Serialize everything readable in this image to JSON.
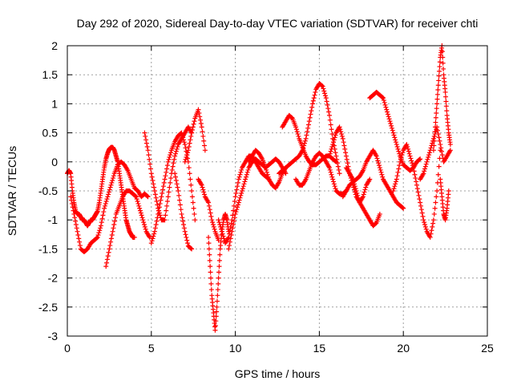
{
  "chart_data": {
    "type": "scatter",
    "title": "Day 292 of 2020, Sidereal Day-to-day VTEC variation (SDTVAR) for receiver chti",
    "xlabel": "GPS time / hours",
    "ylabel": "SDTVAR / TECUs",
    "xlim": [
      0,
      25
    ],
    "ylim": [
      -3,
      2
    ],
    "grid": true,
    "marker": "+",
    "x_ticks": [
      0,
      5,
      10,
      15,
      20,
      25
    ],
    "x_tick_labels": [
      "0",
      "5",
      "10",
      "15",
      "20",
      "25"
    ],
    "y_ticks": [
      -3,
      -2.5,
      -2,
      -1.5,
      -1,
      -0.5,
      0,
      0.5,
      1,
      1.5,
      2
    ],
    "y_tick_labels": [
      "-3",
      "-2.5",
      "-2",
      "-1.5",
      "-1",
      "-0.5",
      "0",
      "0.5",
      "1",
      "1.5",
      "2"
    ],
    "color": "#ff0000",
    "series": [
      {
        "name": "satellite-track-1",
        "x": [
          0.0,
          0.1,
          0.2,
          0.3,
          0.4,
          0.5,
          0.6,
          0.7,
          0.8,
          0.9,
          1.0,
          1.1,
          1.2,
          1.3,
          1.4,
          1.5,
          1.6,
          1.7,
          1.8,
          1.9,
          2.0,
          2.1,
          2.2,
          2.3,
          2.4,
          2.5,
          2.6,
          2.7,
          2.8,
          2.9,
          3.0,
          3.1,
          3.2,
          3.3,
          3.4,
          3.5,
          3.6,
          3.7,
          3.8,
          3.9,
          4.0
        ],
        "y": [
          -0.2,
          -0.15,
          -0.2,
          -0.5,
          -0.7,
          -0.85,
          -0.9,
          -0.9,
          -0.95,
          -1.0,
          -1.0,
          -1.05,
          -1.1,
          -1.05,
          -1.0,
          -1.0,
          -0.95,
          -0.9,
          -0.85,
          -0.7,
          -0.5,
          -0.3,
          -0.1,
          0.05,
          0.15,
          0.22,
          0.25,
          0.25,
          0.2,
          0.1,
          0.0,
          -0.2,
          -0.4,
          -0.6,
          -0.8,
          -1.0,
          -1.1,
          -1.2,
          -1.25,
          -1.3,
          -1.3
        ]
      },
      {
        "name": "satellite-track-2",
        "x": [
          0.2,
          0.4,
          0.6,
          0.8,
          1.0,
          1.2,
          1.4,
          1.6,
          1.8,
          2.0,
          2.2,
          2.4,
          2.6,
          2.8,
          3.0,
          3.2,
          3.4,
          3.6,
          3.8,
          4.0,
          4.2,
          4.4,
          4.6,
          4.8
        ],
        "y": [
          -0.6,
          -0.9,
          -1.2,
          -1.5,
          -1.55,
          -1.5,
          -1.4,
          -1.35,
          -1.3,
          -1.1,
          -0.8,
          -0.6,
          -0.4,
          -0.2,
          -0.05,
          0.0,
          -0.05,
          -0.15,
          -0.3,
          -0.45,
          -0.5,
          -0.6,
          -0.55,
          -0.6
        ]
      },
      {
        "name": "satellite-track-3",
        "x": [
          2.3,
          2.5,
          2.7,
          2.9,
          3.1,
          3.3,
          3.5,
          3.7,
          3.9,
          4.1,
          4.3,
          4.5,
          4.7,
          4.9
        ],
        "y": [
          -1.8,
          -1.5,
          -1.2,
          -0.9,
          -0.75,
          -0.6,
          -0.5,
          -0.5,
          -0.55,
          -0.6,
          -0.8,
          -1.0,
          -1.2,
          -1.3
        ]
      },
      {
        "name": "satellite-track-4",
        "x": [
          4.6,
          4.8,
          5.0,
          5.2,
          5.4,
          5.6,
          5.8,
          6.0,
          6.2,
          6.4,
          6.6,
          6.8,
          7.0,
          7.2,
          7.4
        ],
        "y": [
          0.5,
          0.2,
          -0.2,
          -0.5,
          -0.8,
          -1.0,
          -1.0,
          -0.6,
          -0.2,
          0.1,
          0.3,
          0.4,
          0.5,
          0.6,
          0.5
        ]
      },
      {
        "name": "satellite-track-5",
        "x": [
          5.0,
          5.2,
          5.4,
          5.6,
          5.8,
          6.0,
          6.2,
          6.4,
          6.6,
          6.8,
          7.0,
          7.2,
          7.4,
          7.6
        ],
        "y": [
          -1.4,
          -1.2,
          -0.9,
          -0.6,
          -0.3,
          0.0,
          0.2,
          0.35,
          0.45,
          0.5,
          0.3,
          0.0,
          -0.5,
          -1.0
        ]
      },
      {
        "name": "satellite-track-6",
        "x": [
          6.4,
          6.6,
          6.8,
          7.0,
          7.2,
          7.4
        ],
        "y": [
          -0.2,
          -0.5,
          -0.9,
          -1.2,
          -1.45,
          -1.5
        ]
      },
      {
        "name": "satellite-track-7",
        "x": [
          7.0,
          7.2,
          7.4,
          7.6,
          7.8,
          8.0,
          8.2
        ],
        "y": [
          0.0,
          0.2,
          0.5,
          0.75,
          0.9,
          0.6,
          0.2
        ]
      },
      {
        "name": "satellite-track-8",
        "x": [
          7.8,
          8.0,
          8.2,
          8.4,
          8.6,
          8.8,
          9.0
        ],
        "y": [
          -0.3,
          -0.4,
          -0.6,
          -0.7,
          -1.0,
          -1.2,
          -1.35
        ]
      },
      {
        "name": "satellite-track-9",
        "x": [
          8.4,
          8.5,
          8.6,
          8.7,
          8.8,
          8.9,
          9.0,
          9.1,
          9.2,
          9.3,
          9.4,
          9.5,
          9.6
        ],
        "y": [
          -1.3,
          -1.8,
          -2.3,
          -2.6,
          -2.9,
          -2.5,
          -2.0,
          -1.5,
          -1.2,
          -1.0,
          -0.9,
          -1.0,
          -1.2
        ]
      },
      {
        "name": "satellite-track-10",
        "x": [
          9.0,
          9.2,
          9.4,
          9.6,
          9.8,
          10.0,
          10.2,
          10.4,
          10.6,
          10.8,
          11.0,
          11.2,
          11.4,
          11.6,
          11.8,
          12.0
        ],
        "y": [
          -1.0,
          -1.2,
          -1.4,
          -1.3,
          -1.0,
          -0.6,
          -0.3,
          -0.1,
          0.0,
          0.1,
          0.1,
          0.0,
          -0.1,
          -0.2,
          -0.25,
          -0.3
        ]
      },
      {
        "name": "satellite-track-11",
        "x": [
          9.6,
          9.8,
          10.0,
          10.2,
          10.4,
          10.6,
          10.8,
          11.0,
          11.2,
          11.4,
          11.6,
          11.8,
          12.0,
          12.2,
          12.4,
          12.6,
          12.8,
          13.0
        ],
        "y": [
          -1.5,
          -1.2,
          -0.9,
          -0.7,
          -0.5,
          -0.3,
          -0.1,
          0.0,
          0.05,
          0.0,
          -0.05,
          -0.1,
          -0.05,
          0.0,
          0.05,
          0.0,
          -0.1,
          -0.2
        ]
      },
      {
        "name": "satellite-track-12",
        "x": [
          10.8,
          11.0,
          11.2,
          11.4,
          11.6,
          11.8,
          12.0,
          12.2,
          12.4,
          12.6,
          12.8,
          13.0
        ],
        "y": [
          0.0,
          0.1,
          0.2,
          0.15,
          0.05,
          -0.1,
          -0.3,
          -0.4,
          -0.45,
          -0.35,
          -0.2,
          -0.1
        ]
      },
      {
        "name": "satellite-track-13",
        "x": [
          12.8,
          13.0,
          13.2,
          13.4,
          13.6,
          13.8,
          14.0,
          14.2,
          14.4,
          14.6,
          14.8,
          15.0,
          15.2,
          15.4,
          15.6,
          15.8,
          16.0
        ],
        "y": [
          0.6,
          0.7,
          0.8,
          0.75,
          0.6,
          0.4,
          0.25,
          0.1,
          0.0,
          -0.05,
          -0.05,
          0.0,
          0.05,
          0.1,
          0.1,
          0.05,
          0.0
        ]
      },
      {
        "name": "satellite-track-14",
        "x": [
          12.6,
          12.8,
          13.0,
          13.2,
          13.4,
          13.6,
          13.8,
          14.0,
          14.2,
          14.4,
          14.6,
          14.8,
          15.0,
          15.2,
          15.4,
          15.6,
          15.8,
          16.0,
          16.2
        ],
        "y": [
          -0.2,
          -0.15,
          -0.1,
          -0.05,
          0.0,
          0.05,
          0.1,
          0.2,
          0.4,
          0.7,
          1.0,
          1.25,
          1.35,
          1.3,
          1.1,
          0.8,
          0.4,
          0.1,
          -0.2
        ]
      },
      {
        "name": "satellite-track-15",
        "x": [
          13.6,
          13.8,
          14.0,
          14.2,
          14.4,
          14.6,
          14.8,
          15.0,
          15.2,
          15.4,
          15.6,
          15.8,
          16.0,
          16.2,
          16.4,
          16.6
        ],
        "y": [
          -0.3,
          -0.4,
          -0.4,
          -0.3,
          -0.15,
          0.0,
          0.1,
          0.15,
          0.1,
          0.0,
          -0.1,
          -0.3,
          -0.5,
          -0.55,
          -0.55,
          -0.5
        ]
      },
      {
        "name": "satellite-track-16",
        "x": [
          15.6,
          15.8,
          16.0,
          16.2,
          16.4,
          16.6,
          16.8,
          17.0,
          17.2,
          17.4,
          17.6,
          17.8,
          18.0
        ],
        "y": [
          0.1,
          0.3,
          0.5,
          0.6,
          0.4,
          0.1,
          -0.2,
          -0.4,
          -0.6,
          -0.7,
          -0.6,
          -0.4,
          -0.3
        ]
      },
      {
        "name": "satellite-track-17",
        "x": [
          16.4,
          16.6,
          16.8,
          17.0,
          17.2,
          17.4,
          17.6,
          17.8,
          18.0,
          18.2,
          18.4,
          18.6,
          18.8,
          19.0,
          19.2,
          19.4,
          19.6,
          19.8,
          20.0
        ],
        "y": [
          -0.6,
          -0.5,
          -0.4,
          -0.35,
          -0.3,
          -0.25,
          -0.15,
          0.0,
          0.1,
          0.2,
          0.1,
          -0.1,
          -0.3,
          -0.4,
          -0.5,
          -0.6,
          -0.7,
          -0.75,
          -0.8
        ]
      },
      {
        "name": "satellite-track-18",
        "x": [
          16.6,
          16.8,
          17.0,
          17.2,
          17.4,
          17.6,
          17.8,
          18.0,
          18.2,
          18.4,
          18.6
        ],
        "y": [
          -0.1,
          -0.2,
          -0.3,
          -0.5,
          -0.7,
          -0.8,
          -0.9,
          -1.0,
          -1.1,
          -1.05,
          -0.9
        ]
      },
      {
        "name": "satellite-track-19",
        "x": [
          18.0,
          18.2,
          18.4,
          18.6,
          18.8,
          19.0,
          19.2,
          19.4,
          19.6,
          19.8,
          20.0,
          20.2,
          20.4,
          20.6,
          20.8,
          21.0
        ],
        "y": [
          1.1,
          1.15,
          1.2,
          1.15,
          1.1,
          0.9,
          0.7,
          0.5,
          0.3,
          0.1,
          -0.05,
          -0.1,
          -0.15,
          -0.1,
          0.0,
          0.05
        ]
      },
      {
        "name": "satellite-track-20",
        "x": [
          19.4,
          19.6,
          19.8,
          20.0,
          20.2,
          20.4,
          20.6,
          20.8,
          21.0,
          21.2,
          21.4,
          21.6,
          21.8,
          22.0,
          22.2
        ],
        "y": [
          -0.5,
          -0.3,
          0.0,
          0.2,
          0.3,
          0.1,
          -0.1,
          -0.4,
          -0.7,
          -1.0,
          -1.2,
          -1.3,
          -1.0,
          -0.5,
          0.2
        ]
      },
      {
        "name": "satellite-track-21",
        "x": [
          21.0,
          21.2,
          21.4,
          21.6,
          21.8,
          22.0,
          22.2,
          22.4,
          22.6,
          22.8
        ],
        "y": [
          -0.3,
          -0.2,
          0.0,
          0.2,
          0.4,
          0.6,
          0.3,
          0.0,
          0.1,
          0.2
        ]
      },
      {
        "name": "satellite-track-22",
        "x": [
          21.8,
          21.9,
          22.0,
          22.1,
          22.2,
          22.3,
          22.4,
          22.5,
          22.6,
          22.7,
          22.8
        ],
        "y": [
          0.2,
          0.6,
          1.0,
          1.4,
          1.8,
          2.0,
          1.5,
          1.2,
          0.8,
          0.5,
          0.3
        ]
      },
      {
        "name": "satellite-track-23",
        "x": [
          22.2,
          22.3,
          22.4,
          22.5,
          22.6,
          22.7
        ],
        "y": [
          -0.3,
          -0.6,
          -0.9,
          -1.0,
          -0.8,
          -0.5
        ]
      }
    ]
  }
}
